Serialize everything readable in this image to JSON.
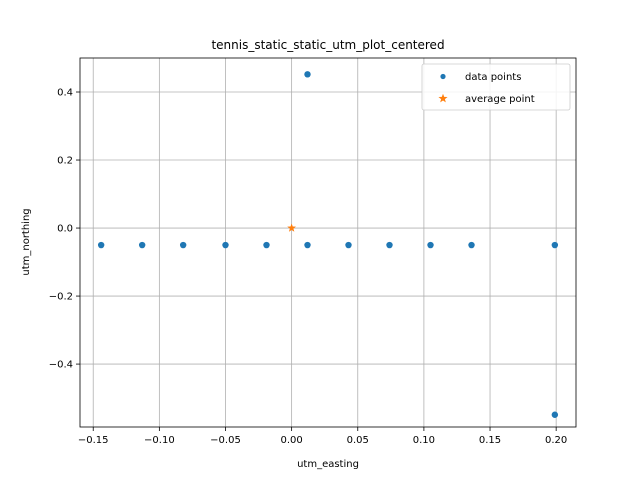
{
  "chart_data": {
    "type": "scatter",
    "title": "tennis_static_static_utm_plot_centered",
    "xlabel": "utm_easting",
    "ylabel": "utm_northing",
    "xlim": [
      -0.16,
      0.215
    ],
    "ylim": [
      -0.585,
      0.5
    ],
    "xticks": [
      -0.15,
      -0.1,
      -0.05,
      0.0,
      0.05,
      0.1,
      0.15,
      0.2
    ],
    "xtick_labels": [
      "−0.15",
      "−0.10",
      "−0.05",
      "0.00",
      "0.05",
      "0.10",
      "0.15",
      "0.20"
    ],
    "yticks": [
      -0.4,
      -0.2,
      0.0,
      0.2,
      0.4
    ],
    "ytick_labels": [
      "−0.4",
      "−0.2",
      "0.0",
      "0.2",
      "0.4"
    ],
    "grid": true,
    "legend_position": "top-right",
    "series": [
      {
        "name": "data points",
        "marker": "circle",
        "color": "#1f77b4",
        "points": [
          {
            "x": -0.144,
            "y": -0.05
          },
          {
            "x": -0.113,
            "y": -0.05
          },
          {
            "x": -0.082,
            "y": -0.05
          },
          {
            "x": -0.05,
            "y": -0.05
          },
          {
            "x": -0.019,
            "y": -0.05
          },
          {
            "x": 0.012,
            "y": -0.05
          },
          {
            "x": 0.043,
            "y": -0.05
          },
          {
            "x": 0.074,
            "y": -0.05
          },
          {
            "x": 0.105,
            "y": -0.05
          },
          {
            "x": 0.136,
            "y": -0.05
          },
          {
            "x": 0.199,
            "y": -0.05
          },
          {
            "x": 0.012,
            "y": 0.452
          },
          {
            "x": 0.199,
            "y": -0.549
          }
        ]
      },
      {
        "name": "average point",
        "marker": "star",
        "color": "#ff7f0e",
        "points": [
          {
            "x": 0.0,
            "y": 0.0
          }
        ]
      }
    ]
  }
}
